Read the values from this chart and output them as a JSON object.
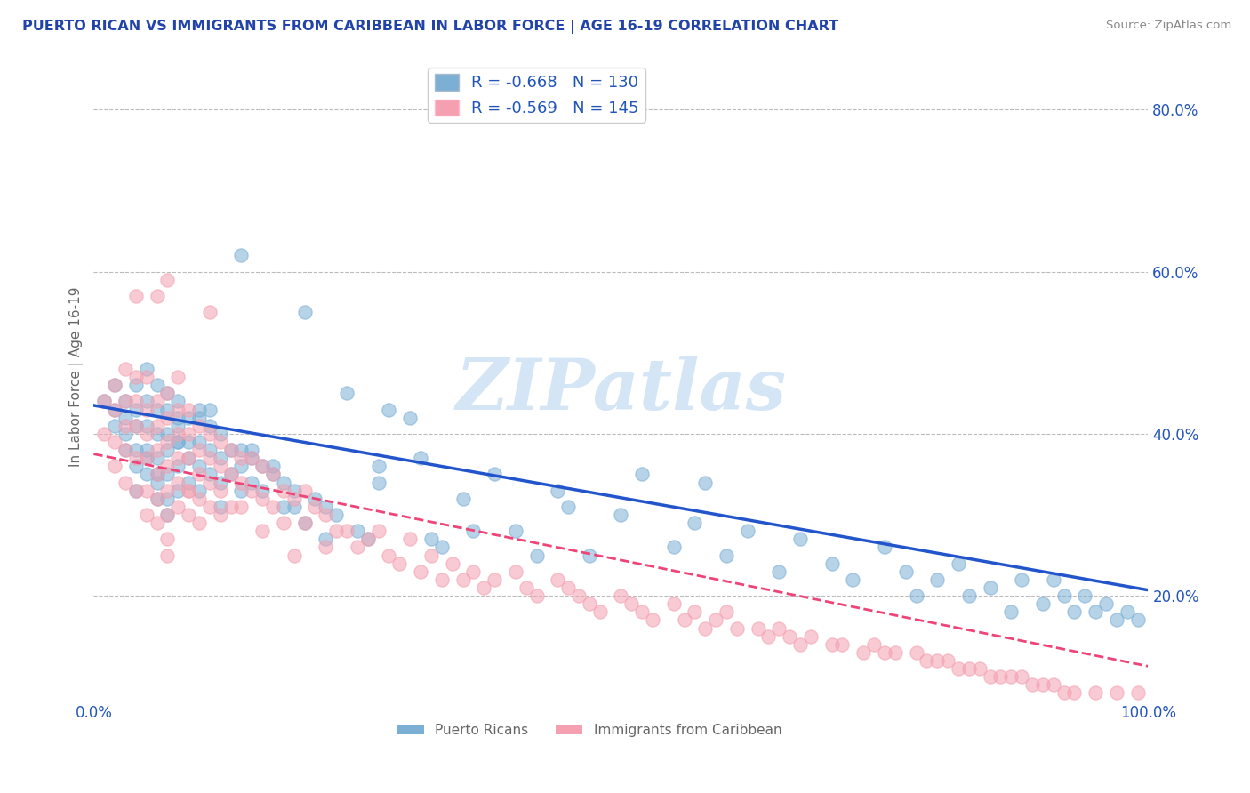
{
  "title": "PUERTO RICAN VS IMMIGRANTS FROM CARIBBEAN IN LABOR FORCE | AGE 16-19 CORRELATION CHART",
  "source_text": "Source: ZipAtlas.com",
  "ylabel": "In Labor Force | Age 16-19",
  "x_min": 0.0,
  "x_max": 1.0,
  "y_min": 0.07,
  "y_max": 0.87,
  "legend_label_blue": "R = -0.668   N = 130",
  "legend_label_pink": "R = -0.569   N = 145",
  "bottom_legend_blue": "Puerto Ricans",
  "bottom_legend_pink": "Immigrants from Caribbean",
  "blue_color": "#7BAFD4",
  "pink_color": "#F4A0B0",
  "trendline_blue_color": "#2255CC",
  "trendline_pink_color": "#EE4477",
  "watermark_text": "ZIPatlas",
  "title_color": "#2244AA",
  "axis_label_color": "#666666",
  "tick_label_color": "#2255BB",
  "grid_color": "#BBBBBB",
  "blue_intercept": 0.435,
  "blue_slope": -0.228,
  "pink_intercept": 0.375,
  "pink_slope": -0.262,
  "blue_scatter": {
    "x": [
      0.01,
      0.02,
      0.02,
      0.02,
      0.03,
      0.03,
      0.03,
      0.03,
      0.04,
      0.04,
      0.04,
      0.04,
      0.04,
      0.05,
      0.05,
      0.05,
      0.05,
      0.05,
      0.06,
      0.06,
      0.06,
      0.06,
      0.06,
      0.06,
      0.07,
      0.07,
      0.07,
      0.07,
      0.07,
      0.07,
      0.07,
      0.08,
      0.08,
      0.08,
      0.08,
      0.08,
      0.09,
      0.09,
      0.09,
      0.09,
      0.1,
      0.1,
      0.1,
      0.1,
      0.11,
      0.11,
      0.11,
      0.12,
      0.12,
      0.12,
      0.12,
      0.13,
      0.13,
      0.14,
      0.14,
      0.14,
      0.15,
      0.15,
      0.16,
      0.16,
      0.17,
      0.18,
      0.18,
      0.19,
      0.2,
      0.21,
      0.22,
      0.23,
      0.24,
      0.25,
      0.26,
      0.27,
      0.27,
      0.28,
      0.3,
      0.31,
      0.32,
      0.33,
      0.35,
      0.36,
      0.38,
      0.4,
      0.42,
      0.44,
      0.45,
      0.47,
      0.5,
      0.52,
      0.55,
      0.57,
      0.58,
      0.6,
      0.62,
      0.65,
      0.67,
      0.7,
      0.72,
      0.75,
      0.77,
      0.78,
      0.8,
      0.82,
      0.83,
      0.85,
      0.87,
      0.88,
      0.9,
      0.91,
      0.92,
      0.93,
      0.94,
      0.95,
      0.96,
      0.97,
      0.98,
      0.99,
      0.2,
      0.15,
      0.1,
      0.08,
      0.06,
      0.05,
      0.04,
      0.14,
      0.22,
      0.19,
      0.17,
      0.11,
      0.08
    ],
    "y": [
      0.44,
      0.46,
      0.43,
      0.41,
      0.44,
      0.42,
      0.4,
      0.38,
      0.46,
      0.43,
      0.41,
      0.38,
      0.36,
      0.48,
      0.44,
      0.41,
      0.38,
      0.35,
      0.46,
      0.43,
      0.4,
      0.37,
      0.34,
      0.32,
      0.45,
      0.43,
      0.4,
      0.38,
      0.35,
      0.32,
      0.3,
      0.44,
      0.42,
      0.39,
      0.36,
      0.33,
      0.42,
      0.39,
      0.37,
      0.34,
      0.42,
      0.39,
      0.36,
      0.33,
      0.41,
      0.38,
      0.35,
      0.4,
      0.37,
      0.34,
      0.31,
      0.38,
      0.35,
      0.38,
      0.36,
      0.33,
      0.37,
      0.34,
      0.36,
      0.33,
      0.35,
      0.34,
      0.31,
      0.33,
      0.55,
      0.32,
      0.31,
      0.3,
      0.45,
      0.28,
      0.27,
      0.36,
      0.34,
      0.43,
      0.42,
      0.37,
      0.27,
      0.26,
      0.32,
      0.28,
      0.35,
      0.28,
      0.25,
      0.33,
      0.31,
      0.25,
      0.3,
      0.35,
      0.26,
      0.29,
      0.34,
      0.25,
      0.28,
      0.23,
      0.27,
      0.24,
      0.22,
      0.26,
      0.23,
      0.2,
      0.22,
      0.24,
      0.2,
      0.21,
      0.18,
      0.22,
      0.19,
      0.22,
      0.2,
      0.18,
      0.2,
      0.18,
      0.19,
      0.17,
      0.18,
      0.17,
      0.29,
      0.38,
      0.43,
      0.39,
      0.35,
      0.37,
      0.33,
      0.62,
      0.27,
      0.31,
      0.36,
      0.43,
      0.41
    ]
  },
  "pink_scatter": {
    "x": [
      0.01,
      0.01,
      0.02,
      0.02,
      0.02,
      0.02,
      0.03,
      0.03,
      0.03,
      0.03,
      0.03,
      0.04,
      0.04,
      0.04,
      0.04,
      0.04,
      0.05,
      0.05,
      0.05,
      0.05,
      0.05,
      0.05,
      0.06,
      0.06,
      0.06,
      0.06,
      0.06,
      0.06,
      0.07,
      0.07,
      0.07,
      0.07,
      0.07,
      0.07,
      0.07,
      0.07,
      0.08,
      0.08,
      0.08,
      0.08,
      0.08,
      0.09,
      0.09,
      0.09,
      0.09,
      0.09,
      0.1,
      0.1,
      0.1,
      0.1,
      0.1,
      0.11,
      0.11,
      0.11,
      0.11,
      0.12,
      0.12,
      0.12,
      0.12,
      0.13,
      0.13,
      0.14,
      0.14,
      0.14,
      0.15,
      0.15,
      0.16,
      0.16,
      0.17,
      0.17,
      0.18,
      0.18,
      0.19,
      0.2,
      0.2,
      0.21,
      0.22,
      0.22,
      0.23,
      0.24,
      0.25,
      0.26,
      0.27,
      0.28,
      0.29,
      0.3,
      0.31,
      0.32,
      0.33,
      0.34,
      0.35,
      0.36,
      0.37,
      0.38,
      0.4,
      0.41,
      0.42,
      0.44,
      0.45,
      0.46,
      0.47,
      0.48,
      0.5,
      0.51,
      0.52,
      0.53,
      0.55,
      0.56,
      0.57,
      0.58,
      0.59,
      0.6,
      0.61,
      0.63,
      0.64,
      0.65,
      0.66,
      0.67,
      0.68,
      0.7,
      0.71,
      0.73,
      0.74,
      0.75,
      0.76,
      0.78,
      0.79,
      0.8,
      0.81,
      0.82,
      0.83,
      0.84,
      0.85,
      0.86,
      0.87,
      0.88,
      0.89,
      0.9,
      0.91,
      0.92,
      0.93,
      0.95,
      0.97,
      0.99,
      0.07,
      0.09,
      0.11,
      0.13,
      0.06,
      0.04,
      0.08,
      0.16,
      0.19
    ],
    "y": [
      0.44,
      0.4,
      0.46,
      0.43,
      0.39,
      0.36,
      0.48,
      0.44,
      0.41,
      0.38,
      0.34,
      0.47,
      0.44,
      0.41,
      0.37,
      0.33,
      0.47,
      0.43,
      0.4,
      0.37,
      0.33,
      0.3,
      0.44,
      0.41,
      0.38,
      0.35,
      0.32,
      0.29,
      0.45,
      0.42,
      0.39,
      0.36,
      0.33,
      0.3,
      0.27,
      0.25,
      0.43,
      0.4,
      0.37,
      0.34,
      0.31,
      0.43,
      0.4,
      0.37,
      0.33,
      0.3,
      0.41,
      0.38,
      0.35,
      0.32,
      0.29,
      0.4,
      0.37,
      0.34,
      0.31,
      0.39,
      0.36,
      0.33,
      0.3,
      0.38,
      0.35,
      0.37,
      0.34,
      0.31,
      0.37,
      0.33,
      0.36,
      0.32,
      0.35,
      0.31,
      0.33,
      0.29,
      0.32,
      0.33,
      0.29,
      0.31,
      0.3,
      0.26,
      0.28,
      0.28,
      0.26,
      0.27,
      0.28,
      0.25,
      0.24,
      0.27,
      0.23,
      0.25,
      0.22,
      0.24,
      0.22,
      0.23,
      0.21,
      0.22,
      0.23,
      0.21,
      0.2,
      0.22,
      0.21,
      0.2,
      0.19,
      0.18,
      0.2,
      0.19,
      0.18,
      0.17,
      0.19,
      0.17,
      0.18,
      0.16,
      0.17,
      0.18,
      0.16,
      0.16,
      0.15,
      0.16,
      0.15,
      0.14,
      0.15,
      0.14,
      0.14,
      0.13,
      0.14,
      0.13,
      0.13,
      0.13,
      0.12,
      0.12,
      0.12,
      0.11,
      0.11,
      0.11,
      0.1,
      0.1,
      0.1,
      0.1,
      0.09,
      0.09,
      0.09,
      0.08,
      0.08,
      0.08,
      0.08,
      0.08,
      0.59,
      0.33,
      0.55,
      0.31,
      0.57,
      0.57,
      0.47,
      0.28,
      0.25
    ]
  },
  "y_ticks": [
    0.2,
    0.4,
    0.6,
    0.8
  ],
  "y_tick_labels": [
    "20.0%",
    "40.0%",
    "60.0%",
    "80.0%"
  ],
  "x_ticks": [
    0.0,
    1.0
  ],
  "x_tick_labels": [
    "0.0%",
    "100.0%"
  ]
}
